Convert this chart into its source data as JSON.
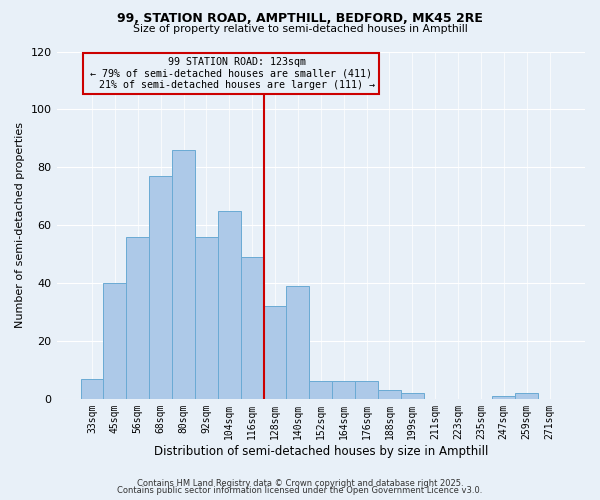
{
  "title1": "99, STATION ROAD, AMPTHILL, BEDFORD, MK45 2RE",
  "title2": "Size of property relative to semi-detached houses in Ampthill",
  "xlabel": "Distribution of semi-detached houses by size in Ampthill",
  "ylabel": "Number of semi-detached properties",
  "bar_labels": [
    "33sqm",
    "45sqm",
    "56sqm",
    "68sqm",
    "80sqm",
    "92sqm",
    "104sqm",
    "116sqm",
    "128sqm",
    "140sqm",
    "152sqm",
    "164sqm",
    "176sqm",
    "188sqm",
    "199sqm",
    "211sqm",
    "223sqm",
    "235sqm",
    "247sqm",
    "259sqm",
    "271sqm"
  ],
  "bar_values": [
    7,
    40,
    56,
    77,
    86,
    56,
    65,
    49,
    32,
    39,
    6,
    6,
    6,
    3,
    2,
    0,
    0,
    0,
    1,
    2,
    0
  ],
  "bar_color": "#adc9e8",
  "bar_edge_color": "#6aaad4",
  "bg_color": "#e8f0f8",
  "property_label": "99 STATION ROAD: 123sqm",
  "pct_smaller": 79,
  "pct_smaller_count": 411,
  "pct_larger": 21,
  "pct_larger_count": 111,
  "vline_x_index": 7.5,
  "annotation_box_color": "#cc0000",
  "footer1": "Contains HM Land Registry data © Crown copyright and database right 2025.",
  "footer2": "Contains public sector information licensed under the Open Government Licence v3.0.",
  "ylim": [
    0,
    120
  ],
  "yticks": [
    0,
    20,
    40,
    60,
    80,
    100,
    120
  ]
}
